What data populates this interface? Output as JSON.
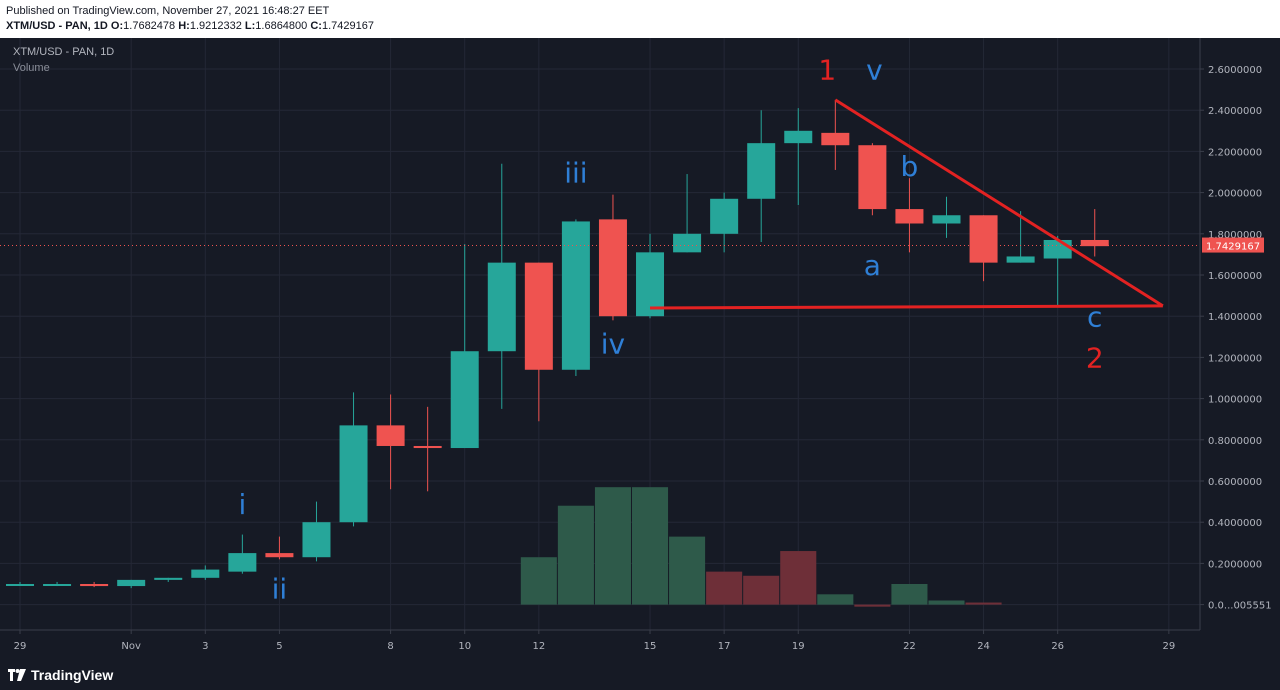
{
  "header": {
    "published": "Published on TradingView.com, November 27, 2021 16:48:27 EET",
    "symbol": "XTM/USD - PAN, 1D",
    "open_label": "O:",
    "open": "1.7682478",
    "high_label": "H:",
    "high": "1.9212332",
    "low_label": "L:",
    "low": "1.6864800",
    "close_label": "C:",
    "close": "1.7429167"
  },
  "legend": {
    "title": "XTM/USD - PAN, 1D",
    "volume": "Volume"
  },
  "footer": {
    "brand": "TradingView"
  },
  "colors": {
    "background": "#161a25",
    "up": "#26a69a",
    "down": "#ef5350",
    "volume_up": "#2e5a4a",
    "volume_down": "#6e2f38",
    "annotation_red": "#e32222",
    "annotation_blue": "#2f7fd6",
    "grid": "#242836",
    "axis_text": "#b2b5be"
  },
  "chart_data": {
    "type": "candlestick",
    "price_axis_ticks": [
      "2.6000000",
      "2.4000000",
      "2.2000000",
      "2.0000000",
      "1.8000000",
      "1.6000000",
      "1.4000000",
      "1.2000000",
      "1.0000000",
      "0.8000000",
      "0.6000000",
      "0.4000000",
      "0.2000000",
      "0.0...005551"
    ],
    "price_tick_values": [
      2.6,
      2.4,
      2.2,
      2.0,
      1.8,
      1.6,
      1.4,
      1.2,
      1.0,
      0.8,
      0.6,
      0.4,
      0.2,
      0.0
    ],
    "time_axis_ticks": [
      "29",
      "Nov",
      "3",
      "5",
      "8",
      "10",
      "12",
      "15",
      "17",
      "19",
      "22",
      "24",
      "26",
      "29"
    ],
    "time_tick_index": [
      0,
      3,
      5,
      7,
      10,
      12,
      14,
      17,
      19,
      21,
      24,
      26,
      28,
      31
    ],
    "last_price": "1.7429167",
    "last_price_value": 1.7429167,
    "candles": [
      {
        "o": 0.1,
        "h": 0.11,
        "l": 0.09,
        "c": 0.1
      },
      {
        "o": 0.1,
        "h": 0.11,
        "l": 0.09,
        "c": 0.1
      },
      {
        "o": 0.1,
        "h": 0.11,
        "l": 0.085,
        "c": 0.09
      },
      {
        "o": 0.09,
        "h": 0.12,
        "l": 0.08,
        "c": 0.12
      },
      {
        "o": 0.12,
        "h": 0.13,
        "l": 0.11,
        "c": 0.13
      },
      {
        "o": 0.13,
        "h": 0.19,
        "l": 0.12,
        "c": 0.17
      },
      {
        "o": 0.16,
        "h": 0.34,
        "l": 0.15,
        "c": 0.25
      },
      {
        "o": 0.25,
        "h": 0.33,
        "l": 0.22,
        "c": 0.23
      },
      {
        "o": 0.23,
        "h": 0.5,
        "l": 0.21,
        "c": 0.4
      },
      {
        "o": 0.4,
        "h": 1.03,
        "l": 0.38,
        "c": 0.87
      },
      {
        "o": 0.87,
        "h": 1.02,
        "l": 0.56,
        "c": 0.77
      },
      {
        "o": 0.77,
        "h": 0.96,
        "l": 0.55,
        "c": 0.76
      },
      {
        "o": 0.76,
        "h": 1.75,
        "l": 0.76,
        "c": 1.23
      },
      {
        "o": 1.23,
        "h": 2.14,
        "l": 0.95,
        "c": 1.66
      },
      {
        "o": 1.66,
        "h": 1.66,
        "l": 0.89,
        "c": 1.14
      },
      {
        "o": 1.14,
        "h": 1.87,
        "l": 1.11,
        "c": 1.86
      },
      {
        "o": 1.87,
        "h": 1.99,
        "l": 1.38,
        "c": 1.4
      },
      {
        "o": 1.4,
        "h": 1.8,
        "l": 1.39,
        "c": 1.71
      },
      {
        "o": 1.71,
        "h": 2.09,
        "l": 1.71,
        "c": 1.8
      },
      {
        "o": 1.8,
        "h": 2.0,
        "l": 1.71,
        "c": 1.97
      },
      {
        "o": 1.97,
        "h": 2.4,
        "l": 1.76,
        "c": 2.24
      },
      {
        "o": 2.24,
        "h": 2.41,
        "l": 1.94,
        "c": 2.3
      },
      {
        "o": 2.29,
        "h": 2.45,
        "l": 2.11,
        "c": 2.23
      },
      {
        "o": 2.23,
        "h": 2.24,
        "l": 1.89,
        "c": 1.92
      },
      {
        "o": 1.92,
        "h": 2.07,
        "l": 1.71,
        "c": 1.85
      },
      {
        "o": 1.85,
        "h": 1.98,
        "l": 1.78,
        "c": 1.89
      },
      {
        "o": 1.89,
        "h": 1.89,
        "l": 1.57,
        "c": 1.66
      },
      {
        "o": 1.66,
        "h": 1.91,
        "l": 1.66,
        "c": 1.69
      },
      {
        "o": 1.68,
        "h": 1.79,
        "l": 1.45,
        "c": 1.77
      },
      {
        "o": 1.77,
        "h": 1.92,
        "l": 1.69,
        "c": 1.74
      }
    ],
    "volume": [
      {
        "i": 14,
        "v": 0.23,
        "up": true
      },
      {
        "i": 15,
        "v": 0.48,
        "up": true
      },
      {
        "i": 16,
        "v": 0.57,
        "up": true
      },
      {
        "i": 17,
        "v": 0.57,
        "up": true
      },
      {
        "i": 18,
        "v": 0.33,
        "up": true
      },
      {
        "i": 19,
        "v": 0.16,
        "up": false
      },
      {
        "i": 20,
        "v": 0.14,
        "up": false
      },
      {
        "i": 21,
        "v": 0.26,
        "up": false
      },
      {
        "i": 22,
        "v": 0.05,
        "up": true
      },
      {
        "i": 23,
        "v": -0.01,
        "up": false
      },
      {
        "i": 24,
        "v": 0.1,
        "up": true
      },
      {
        "i": 25,
        "v": 0.02,
        "up": true
      },
      {
        "i": 26,
        "v": 0.01,
        "up": false
      }
    ],
    "annotations": [
      {
        "text": "i",
        "color": "blue",
        "index": 6,
        "price": 0.44
      },
      {
        "text": "ii",
        "color": "blue",
        "index": 7,
        "price": 0.03
      },
      {
        "text": "iii",
        "color": "blue",
        "index": 15,
        "price": 2.05
      },
      {
        "text": "iv",
        "color": "blue",
        "index": 16,
        "price": 1.22
      },
      {
        "text": "1",
        "color": "red",
        "index": 22,
        "price": 2.55
      },
      {
        "text": "v",
        "color": "blue",
        "index": 23,
        "price": 2.55
      },
      {
        "text": "b",
        "color": "blue",
        "index": 24,
        "price": 2.08
      },
      {
        "text": "a",
        "color": "blue",
        "index": 23,
        "price": 1.6
      },
      {
        "text": "c",
        "color": "blue",
        "index": 29,
        "price": 1.35
      },
      {
        "text": "2",
        "color": "red",
        "index": 29,
        "price": 1.15
      }
    ],
    "trendlines": [
      {
        "from": {
          "i": 22,
          "p": 2.45
        },
        "to": {
          "i": 31,
          "p": 1.45
        }
      },
      {
        "from": {
          "i": 17,
          "p": 1.44
        },
        "to": {
          "i": 31,
          "p": 1.45
        }
      }
    ]
  }
}
